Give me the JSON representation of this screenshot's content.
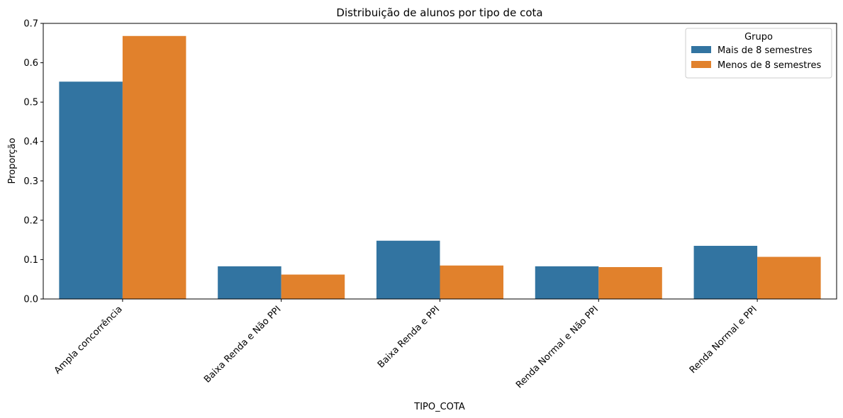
{
  "chart_data": {
    "type": "bar",
    "title": "Distribuição de alunos por tipo de cota",
    "xlabel": "TIPO_COTA",
    "ylabel": "Proporção",
    "categories": [
      "Ampla concorrência",
      "Baixa Renda e Não PPI",
      "Baixa Renda e PPI",
      "Renda Normal e Não PPI",
      "Renda Normal e PPI"
    ],
    "series": [
      {
        "name": "Mais de 8 semestres",
        "values": [
          0.552,
          0.083,
          0.148,
          0.083,
          0.135
        ],
        "color": "#3274a1"
      },
      {
        "name": "Menos de 8 semestres",
        "values": [
          0.668,
          0.062,
          0.085,
          0.081,
          0.107
        ],
        "color": "#e1812c"
      }
    ],
    "ylim": [
      0,
      0.7
    ],
    "yticks": [
      0.0,
      0.1,
      0.2,
      0.3,
      0.4,
      0.5,
      0.6,
      0.7
    ],
    "ytick_labels": [
      "0.0",
      "0.1",
      "0.2",
      "0.3",
      "0.4",
      "0.5",
      "0.6",
      "0.7"
    ],
    "legend": {
      "title": "Grupo",
      "position": "top-right"
    },
    "grid": false
  }
}
